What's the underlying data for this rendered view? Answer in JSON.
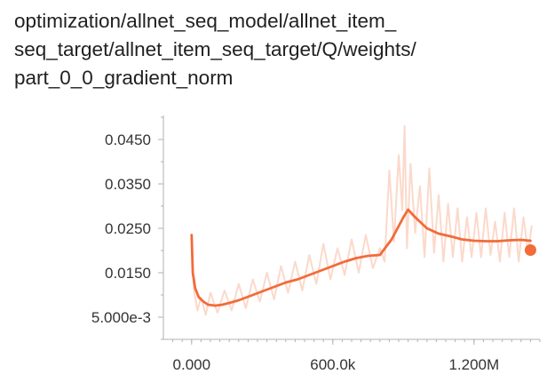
{
  "title_lines": [
    "optimization/allnet_seq_model/allnet_item_",
    "seq_target/allnet_item_seq_target/Q/weights/",
    "part_0_0_gradient_norm"
  ],
  "colors": {
    "smoothed": "#f26b38",
    "raw": "#fbd5c5",
    "axis": "#b0b0b0",
    "text": "#333333"
  },
  "chart_data": {
    "type": "line",
    "title": "optimization/allnet_seq_model/allnet_item_seq_target/allnet_item_seq_target/Q/weights/part_0_0_gradient_norm",
    "xlabel": "",
    "ylabel": "",
    "x_ticks": [
      {
        "value": 0,
        "label": "0.000"
      },
      {
        "value": 600000,
        "label": "600.0k"
      },
      {
        "value": 1200000,
        "label": "1.200M"
      }
    ],
    "y_ticks": [
      {
        "value": 0.005,
        "label": "5.000e-3"
      },
      {
        "value": 0.015,
        "label": "0.0150"
      },
      {
        "value": 0.025,
        "label": "0.0250"
      },
      {
        "value": 0.035,
        "label": "0.0350"
      },
      {
        "value": 0.045,
        "label": "0.0450"
      }
    ],
    "xlim": [
      -120000,
      1480000
    ],
    "ylim": [
      0,
      0.05
    ],
    "grid": false,
    "series": [
      {
        "role": "smoothed",
        "x": [
          0,
          5000,
          15000,
          30000,
          50000,
          70000,
          100000,
          130000,
          160000,
          200000,
          250000,
          300000,
          350000,
          400000,
          450000,
          500000,
          550000,
          600000,
          650000,
          700000,
          750000,
          800000,
          850000,
          900000,
          920000,
          950000,
          1000000,
          1050000,
          1100000,
          1150000,
          1200000,
          1250000,
          1300000,
          1350000,
          1400000,
          1440000
        ],
        "y": [
          0.0235,
          0.015,
          0.0115,
          0.0095,
          0.0085,
          0.0078,
          0.0076,
          0.0078,
          0.0082,
          0.0088,
          0.0098,
          0.0108,
          0.0118,
          0.0128,
          0.0135,
          0.0145,
          0.0155,
          0.0165,
          0.0175,
          0.0183,
          0.0188,
          0.019,
          0.0225,
          0.0275,
          0.0292,
          0.0275,
          0.025,
          0.0238,
          0.0232,
          0.0225,
          0.0222,
          0.0221,
          0.0221,
          0.0223,
          0.0224,
          0.0222
        ]
      },
      {
        "role": "raw",
        "x": [
          0,
          10000,
          25000,
          40000,
          60000,
          80000,
          110000,
          140000,
          170000,
          200000,
          230000,
          260000,
          290000,
          320000,
          350000,
          380000,
          410000,
          440000,
          470000,
          500000,
          530000,
          560000,
          590000,
          620000,
          650000,
          680000,
          710000,
          740000,
          770000,
          800000,
          820000,
          840000,
          860000,
          880000,
          895000,
          905000,
          915000,
          930000,
          950000,
          970000,
          990000,
          1010000,
          1030000,
          1050000,
          1070000,
          1090000,
          1110000,
          1130000,
          1150000,
          1170000,
          1190000,
          1210000,
          1230000,
          1250000,
          1270000,
          1290000,
          1310000,
          1330000,
          1350000,
          1370000,
          1390000,
          1410000,
          1430000,
          1445000
        ],
        "y": [
          0.021,
          0.011,
          0.0065,
          0.0095,
          0.0055,
          0.0105,
          0.006,
          0.011,
          0.0065,
          0.0125,
          0.007,
          0.0135,
          0.0085,
          0.015,
          0.009,
          0.0165,
          0.0105,
          0.0175,
          0.011,
          0.019,
          0.0125,
          0.0215,
          0.0135,
          0.0205,
          0.0145,
          0.0225,
          0.015,
          0.0235,
          0.016,
          0.0205,
          0.0175,
          0.038,
          0.022,
          0.0415,
          0.029,
          0.048,
          0.0205,
          0.0395,
          0.024,
          0.0345,
          0.0185,
          0.0385,
          0.0195,
          0.0325,
          0.0175,
          0.0305,
          0.0185,
          0.0295,
          0.0175,
          0.0275,
          0.0185,
          0.0285,
          0.0185,
          0.0295,
          0.019,
          0.0265,
          0.0175,
          0.0285,
          0.0185,
          0.0295,
          0.0175,
          0.0275,
          0.0195,
          0.0255
        ]
      }
    ],
    "end_marker": {
      "x": 1440000,
      "y": 0.0201
    }
  }
}
